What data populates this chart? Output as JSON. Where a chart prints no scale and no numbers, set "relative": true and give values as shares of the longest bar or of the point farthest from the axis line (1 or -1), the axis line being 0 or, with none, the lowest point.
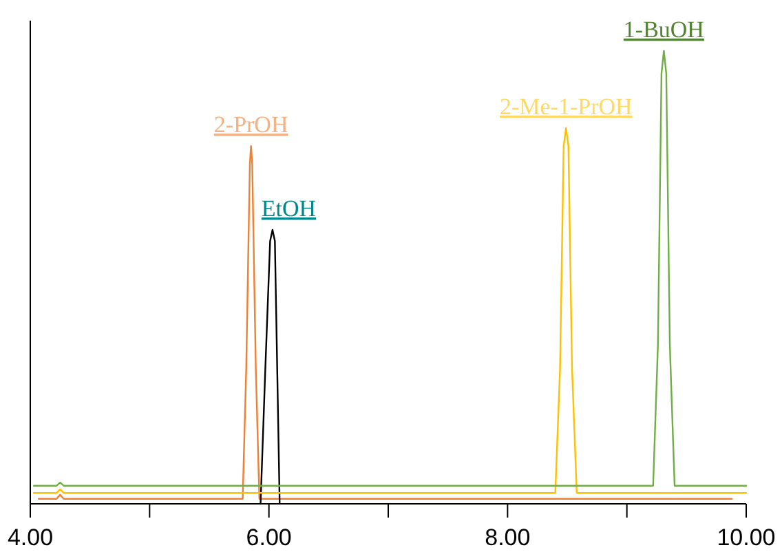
{
  "chart_data": {
    "type": "line",
    "relative": true,
    "legend": false,
    "grid": false,
    "marker": "none",
    "line_style": "solid",
    "xlim": [
      4,
      10
    ],
    "xticks": [
      {
        "value": 4,
        "label": "4.00"
      },
      {
        "value": 5,
        "label": null
      },
      {
        "value": 6,
        "label": "6.00"
      },
      {
        "value": 7,
        "label": null
      },
      {
        "value": 8,
        "label": "8.00"
      },
      {
        "value": 9,
        "label": null
      },
      {
        "value": 10,
        "label": "10.00"
      }
    ],
    "series": [
      {
        "name": "2-PrOH",
        "color": "#f07f33",
        "x": [
          4.07,
          4.22,
          4.25,
          4.28,
          5.78,
          5.81,
          5.84,
          5.85,
          5.86,
          5.89,
          5.92,
          9.88
        ],
        "values": [
          0.011,
          0.011,
          0.02,
          0.011,
          0.011,
          0.3,
          0.75,
          0.79,
          0.75,
          0.3,
          0.011,
          0.011
        ]
      },
      {
        "name": "EtOH",
        "color": "#000000",
        "x": [
          5.93,
          5.97,
          6.01,
          6.03,
          6.05,
          6.09
        ],
        "values": [
          0,
          0.3,
          0.58,
          0.605,
          0.58,
          0
        ]
      },
      {
        "name": "2-Me-1-PrOH",
        "color": "#ffc000",
        "x": [
          4.03,
          4.22,
          4.25,
          4.28,
          8.4,
          8.44,
          8.47,
          8.49,
          8.51,
          8.54,
          8.58,
          10.0
        ],
        "values": [
          0.024,
          0.024,
          0.032,
          0.024,
          0.024,
          0.3,
          0.79,
          0.83,
          0.79,
          0.3,
          0.024,
          0.024
        ]
      },
      {
        "name": "1-BuOH",
        "color": "#70ad47",
        "x": [
          4.03,
          4.22,
          4.25,
          4.28,
          9.22,
          9.26,
          9.29,
          9.31,
          9.33,
          9.36,
          9.4,
          10.0
        ],
        "values": [
          0.04,
          0.04,
          0.047,
          0.04,
          0.04,
          0.35,
          0.95,
          1,
          0.95,
          0.35,
          0.04,
          0.04
        ]
      }
    ]
  }
}
